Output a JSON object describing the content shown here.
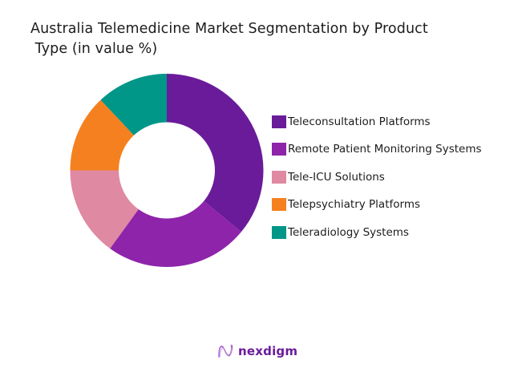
{
  "chart_data": {
    "type": "pie",
    "variant": "donut",
    "title": "Australia Telemedicine Market Segmentation by Product Type (in value %)",
    "title_lines": [
      "Australia Telemedicine Market Segmentation by Product",
      " Type (in value %)"
    ],
    "categories": [
      "Teleconsultation Platforms",
      "Remote Patient Monitoring Systems",
      "Tele-ICU Solutions",
      "Telepsychiatry Platforms",
      "Teleradiology Systems"
    ],
    "values": [
      36,
      24,
      15,
      13,
      12
    ],
    "colors": [
      "#6a1b9a",
      "#8e24aa",
      "#df89a2",
      "#f5801f",
      "#009688"
    ],
    "start_angle": "12 o'clock",
    "direction": "clockwise",
    "data_labels": false,
    "legend_position": "right"
  },
  "legend": {
    "items": [
      {
        "label": "Teleconsultation Platforms",
        "color": "#6a1b9a"
      },
      {
        "label": "Remote Patient Monitoring Systems",
        "color": "#8e24aa"
      },
      {
        "label": "Tele-ICU Solutions",
        "color": "#df89a2"
      },
      {
        "label": "Telepsychiatry Platforms",
        "color": "#f5801f"
      },
      {
        "label": "Teleradiology Systems",
        "color": "#009688"
      }
    ]
  },
  "branding": {
    "logo_text": "nexdigm",
    "logo_icon": "nexdigm-wave-icon",
    "color": "#6a1b9a"
  }
}
